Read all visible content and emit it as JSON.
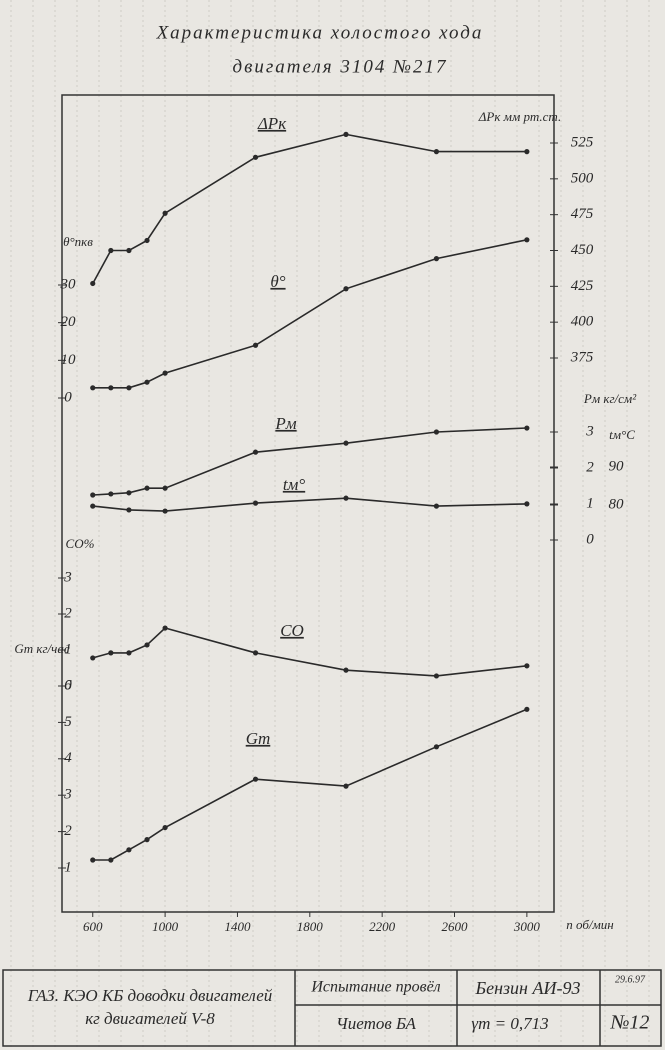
{
  "chart_data": {
    "type": "line",
    "title": "Характеристика холостого хода",
    "subtitle": "двигателя 3104 №217",
    "x_label": "n об/мин",
    "xlim": [
      430,
      3150
    ],
    "xticks": [
      600,
      1000,
      1400,
      1800,
      2200,
      2600,
      3000
    ],
    "axes": [
      {
        "label": "ΔPк мм рт.ст.",
        "side": "right",
        "lim": [
          375,
          525
        ],
        "ticks": [
          375,
          400,
          425,
          450,
          475,
          500,
          525
        ]
      },
      {
        "label": "θ°пкв",
        "side": "left",
        "lim": [
          0,
          30
        ],
        "ticks": [
          0,
          10,
          20,
          30
        ]
      },
      {
        "label": "Pм кг/см²",
        "side": "right",
        "lim": [
          0,
          3
        ],
        "ticks": [
          0,
          1,
          2,
          3
        ]
      },
      {
        "label": "tм°C",
        "side": "right",
        "lim": [
          80,
          90
        ],
        "ticks": [
          80,
          90
        ]
      },
      {
        "label": "CO%",
        "side": "left",
        "lim": [
          0,
          3
        ],
        "ticks": [
          0,
          1,
          2,
          3
        ]
      },
      {
        "label": "Gт кг/час",
        "side": "left",
        "lim": [
          1,
          6
        ],
        "ticks": [
          1,
          2,
          3,
          4,
          5,
          6
        ]
      }
    ],
    "series": [
      {
        "name": "ΔPк",
        "axis": 0,
        "color": "#2a2a2a",
        "x": [
          600,
          700,
          800,
          900,
          1000,
          1500,
          2000,
          2500,
          3000
        ],
        "values": [
          427,
          450,
          450,
          457,
          476,
          515,
          531,
          519,
          519
        ]
      },
      {
        "name": "θ°",
        "axis": 1,
        "color": "#2a2a2a",
        "x": [
          600,
          700,
          800,
          900,
          1000,
          1500,
          2000,
          2500,
          3000
        ],
        "values": [
          2.7,
          2.7,
          2.7,
          4.2,
          6.6,
          14,
          29,
          37,
          42
        ]
      },
      {
        "name": "Pм",
        "axis": 2,
        "color": "#2a2a2a",
        "x": [
          600,
          700,
          800,
          900,
          1000,
          1500,
          2000,
          2500,
          3000
        ],
        "values": [
          1.25,
          1.28,
          1.31,
          1.44,
          1.44,
          2.44,
          2.69,
          3.0,
          3.11
        ]
      },
      {
        "name": "tм°",
        "axis": 3,
        "color": "#2a2a2a",
        "x": [
          600,
          800,
          1000,
          1500,
          2000,
          2500,
          3000
        ],
        "values": [
          79.7,
          78.7,
          78.4,
          80.5,
          81.8,
          79.7,
          80.3
        ]
      },
      {
        "name": "CO",
        "axis": 4,
        "color": "#2a2a2a",
        "x": [
          600,
          700,
          800,
          900,
          1000,
          1500,
          2000,
          2500,
          3000
        ],
        "values": [
          0.78,
          0.92,
          0.92,
          1.14,
          1.61,
          0.92,
          0.44,
          0.28,
          0.56
        ]
      },
      {
        "name": "Gт",
        "axis": 5,
        "color": "#2a2a2a",
        "x": [
          600,
          700,
          800,
          900,
          1000,
          1500,
          2000,
          2500,
          3000
        ],
        "values": [
          1.22,
          1.22,
          1.5,
          1.78,
          2.11,
          3.44,
          3.25,
          4.33,
          5.36
        ]
      }
    ]
  },
  "title_block": {
    "organization": [
      "ГАЗ. КЭО КБ доводки двигателей",
      "кг двигателей V-8"
    ],
    "tested_by": "Испытание провёл",
    "tester": "Чиетов БА",
    "fuel": "Бензин АИ-93",
    "density": "γт = 0,713",
    "date": "29.6.97",
    "number": "№12"
  }
}
